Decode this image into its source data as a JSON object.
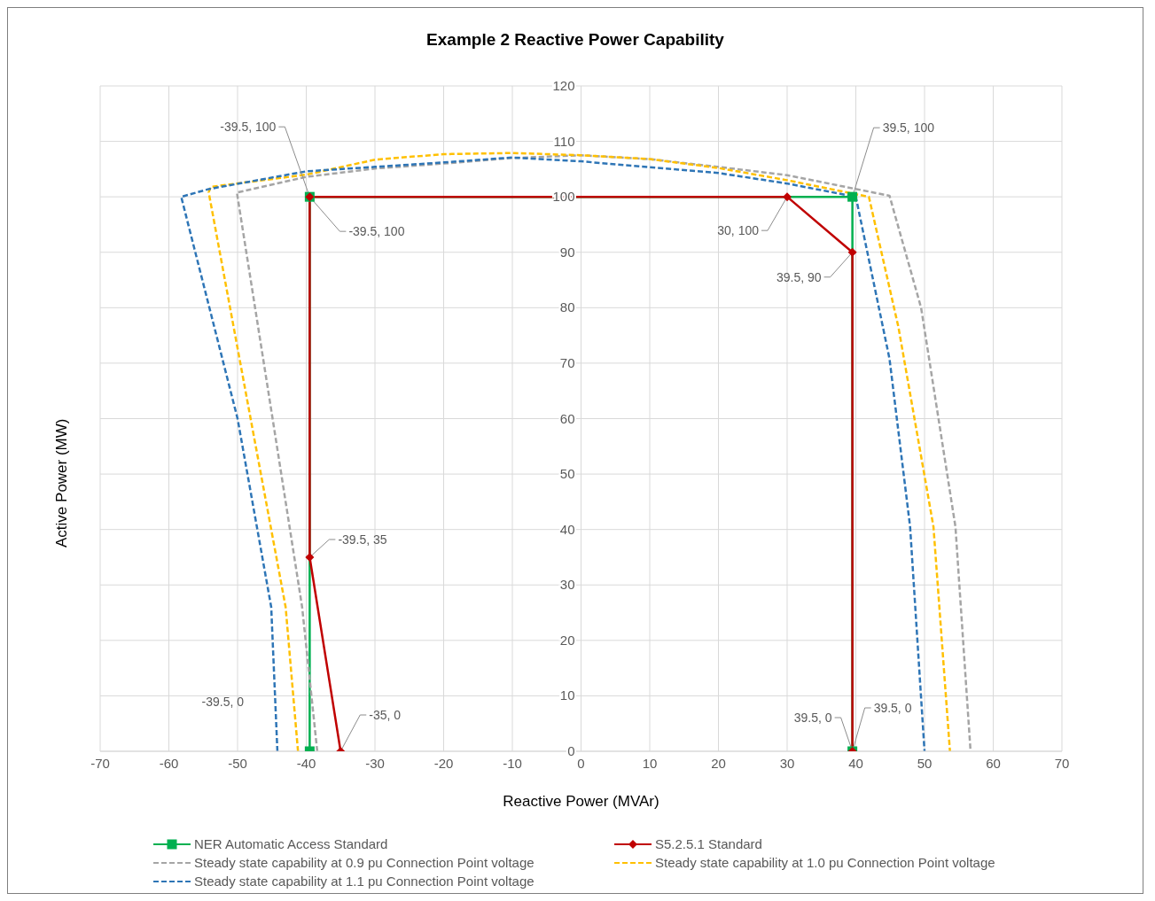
{
  "chart_data": {
    "type": "line",
    "title": "Example 2 Reactive Power Capability",
    "xlabel": "Reactive Power (MVAr)",
    "ylabel": "Active Power (MW)",
    "xlim": [
      -70,
      70
    ],
    "xticks": [
      -70,
      -60,
      -50,
      -40,
      -30,
      -20,
      -10,
      0,
      10,
      20,
      30,
      40,
      50,
      60,
      70
    ],
    "ylim": [
      0,
      120
    ],
    "yticks": [
      0,
      10,
      20,
      30,
      40,
      50,
      60,
      70,
      80,
      90,
      100,
      110,
      120
    ],
    "grid": true,
    "legend": "bottom",
    "series": [
      {
        "name": "NER Automatic Access Standard",
        "color": "#00b050",
        "type": "line",
        "marker": "square",
        "line_style": "solid",
        "x": [
          -39.5,
          -39.5,
          39.5,
          39.5
        ],
        "values": [
          0,
          100,
          100,
          0
        ]
      },
      {
        "name": "S5.2.5.1 Standard",
        "color": "#c00000",
        "type": "line",
        "marker": "diamond",
        "line_style": "solid",
        "x": [
          -35,
          -39.5,
          -39.5,
          30,
          39.5,
          39.5
        ],
        "values": [
          0,
          35,
          100,
          100,
          90,
          0
        ]
      },
      {
        "name": "Steady state capability at 0.9 pu Connection Point voltage",
        "color": "#a5a5a5",
        "type": "line",
        "marker": "none",
        "line_style": "dashed",
        "x": [
          -38.4,
          -40.6,
          -44.9,
          -50.1,
          -50,
          -40,
          -30,
          -20,
          -10,
          0,
          10,
          20,
          30,
          44.9,
          49.5,
          54.5,
          56.7
        ],
        "values": [
          0,
          26,
          60,
          100.8,
          100.8,
          103.6,
          105.1,
          106,
          107,
          107.5,
          106.8,
          105.4,
          103.9,
          100.2,
          80,
          40.5,
          0
        ]
      },
      {
        "name": "Steady state capability at 1.0 pu Connection Point voltage",
        "color": "#ffc000",
        "type": "line",
        "marker": "none",
        "line_style": "dashed",
        "x": [
          -41.2,
          -43,
          -48.1,
          -54.2,
          -53.9,
          -40,
          -30,
          -20,
          -10,
          0,
          10,
          20,
          30,
          41.9,
          46.2,
          51.3,
          53.7
        ],
        "values": [
          0,
          26,
          60,
          100.8,
          101.8,
          104,
          106.7,
          107.7,
          107.9,
          107.5,
          106.8,
          105.2,
          103,
          100,
          76.5,
          40.5,
          0
        ]
      },
      {
        "name": "Steady state capability at 1.1 pu Connection Point voltage",
        "color": "#2e75b6",
        "type": "line",
        "marker": "none",
        "line_style": "dashed",
        "x": [
          -44.2,
          -45.1,
          -50,
          -58.2,
          -54.2,
          -40,
          -30,
          -20,
          -10,
          0,
          20,
          30,
          40,
          44.9,
          47.9,
          50
        ],
        "values": [
          0,
          26,
          60,
          100,
          101.4,
          104.6,
          105.4,
          106.2,
          107.1,
          106.4,
          104.3,
          102.4,
          100,
          70.8,
          40.5,
          0
        ]
      }
    ],
    "annotations": [
      {
        "text": "-39.5, 100",
        "x": -39.5,
        "y": 100
      },
      {
        "text": "-39.5, 100",
        "x": -39.5,
        "y": 100
      },
      {
        "text": "39.5, 100",
        "x": 39.5,
        "y": 100
      },
      {
        "text": "30, 100",
        "x": 30,
        "y": 100
      },
      {
        "text": "39.5, 90",
        "x": 39.5,
        "y": 90
      },
      {
        "text": "-39.5, 35",
        "x": -39.5,
        "y": 35
      },
      "-39.5, 0",
      {
        "text": "-35, 0",
        "x": -35,
        "y": 0
      },
      {
        "text": "39.5, 0",
        "x": 39.5,
        "y": 0
      },
      {
        "text": "39.5, 0",
        "x": 39.5,
        "y": 0
      }
    ]
  }
}
